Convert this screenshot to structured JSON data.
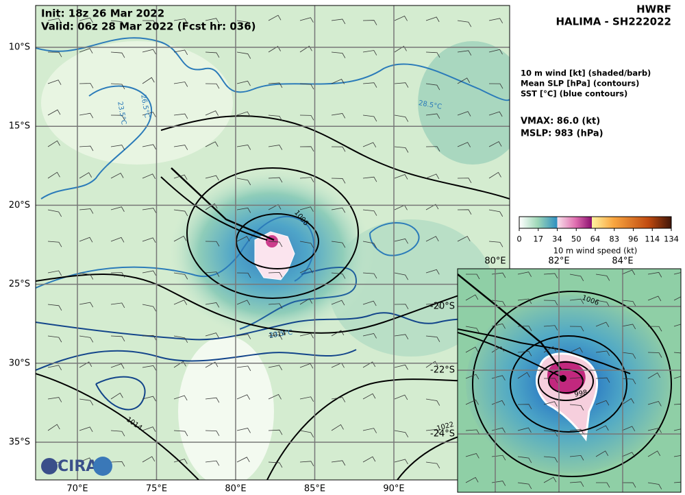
{
  "header": {
    "init": "Init:   18z 26 Mar 2022",
    "valid": "Valid: 06z 28 Mar 2022 (Fcst hr: 036)",
    "model": "HWRF",
    "storm": "HALIMA - SH222022"
  },
  "legend": {
    "lines": [
      "10 m wind [kt] (shaded/barb)",
      "Mean SLP [hPa] (contours)",
      "SST [°C] (blue contours)"
    ]
  },
  "stats": {
    "vmax": "VMAX:  86.0 (kt)",
    "mslp": "MSLP:  983 (hPa)"
  },
  "colorbar": {
    "ticks": [
      "0",
      "17",
      "34",
      "50",
      "64",
      "83",
      "96",
      "114",
      "134"
    ],
    "label": "10 m wind speed (kt)"
  },
  "map": {
    "lat_labels": [
      "10°S",
      "15°S",
      "20°S",
      "25°S",
      "30°S",
      "35°S"
    ],
    "lon_labels": [
      "70°E",
      "75°E",
      "80°E",
      "85°E",
      "90°E"
    ],
    "contour_labels": [
      "1006",
      "1014",
      "1014",
      "1022",
      "28.5°C",
      "23.5°C",
      "23.5°C",
      "26.5°C"
    ]
  },
  "inset": {
    "lon_labels": [
      "80°E",
      "82°E",
      "84°E"
    ],
    "lat_labels": [
      "-20°S",
      "-22°S",
      "-24°S"
    ],
    "contour_labels": [
      "1006",
      "998"
    ]
  },
  "logo": {
    "text": "CIRA"
  }
}
